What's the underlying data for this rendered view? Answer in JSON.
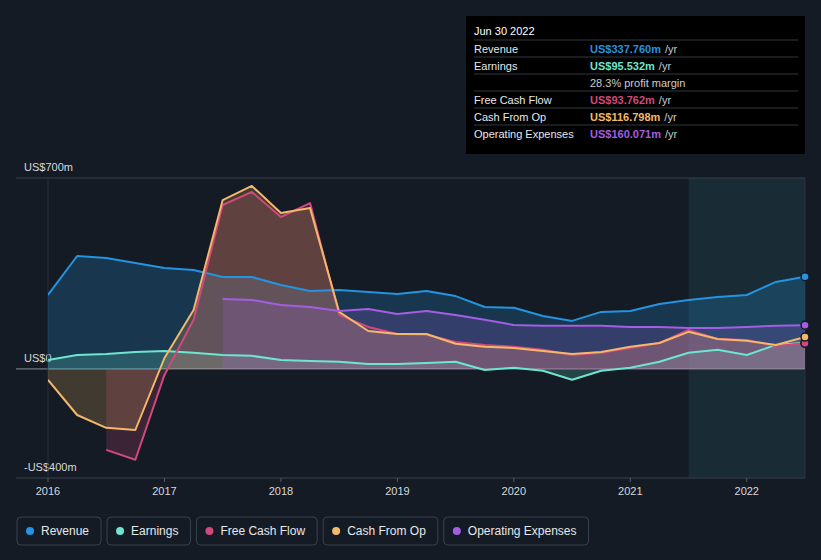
{
  "chart_data": {
    "type": "line",
    "x": [
      2016,
      2016.25,
      2016.5,
      2016.75,
      2017,
      2017.25,
      2017.5,
      2017.75,
      2018,
      2018.25,
      2018.5,
      2018.75,
      2019,
      2019.25,
      2019.5,
      2019.75,
      2020,
      2020.25,
      2020.5,
      2020.75,
      2021,
      2021.25,
      2021.5,
      2021.75,
      2022,
      2022.25,
      2022.5
    ],
    "xlim": [
      2016,
      2022.5
    ],
    "xticks": [
      2016,
      2017,
      2018,
      2019,
      2020,
      2021,
      2022
    ],
    "ylim": [
      -400,
      700
    ],
    "yticks": [
      {
        "value": -400,
        "label": "-US$400m"
      },
      {
        "value": 0,
        "label": "US$0"
      },
      {
        "value": 700,
        "label": "US$700m"
      }
    ],
    "grid": true,
    "legend": "bottom-left",
    "shaded_range": [
      2021.5,
      2022.5
    ],
    "series": [
      {
        "name": "Revenue",
        "color": "#2394df",
        "values": [
          271,
          414,
          407,
          388,
          370,
          363,
          337,
          337,
          308,
          286,
          289,
          282,
          275,
          286,
          267,
          227,
          224,
          194,
          176,
          209,
          212,
          238,
          253,
          264,
          271,
          319,
          338
        ]
      },
      {
        "name": "Earnings",
        "color": "#6ee5cf",
        "values": [
          33,
          51,
          55,
          62,
          66,
          59,
          51,
          48,
          33,
          29,
          26,
          18,
          18,
          22,
          26,
          -4,
          4,
          -7,
          -40,
          -7,
          4,
          26,
          59,
          70,
          51,
          88,
          95.5
        ]
      },
      {
        "name": "Free Cash Flow",
        "color": "#d0497c",
        "values": [
          null,
          null,
          -297,
          -333,
          -22,
          180,
          601,
          649,
          557,
          608,
          198,
          154,
          128,
          125,
          99,
          88,
          81,
          70,
          51,
          59,
          77,
          95,
          143,
          110,
          106,
          84,
          93.8
        ]
      },
      {
        "name": "Cash From Op",
        "color": "#f4b86a",
        "values": [
          -40,
          -169,
          -216,
          -224,
          40,
          216,
          619,
          671,
          572,
          590,
          209,
          139,
          128,
          128,
          92,
          81,
          77,
          66,
          55,
          62,
          81,
          95,
          136,
          110,
          103,
          88,
          116.8
        ]
      },
      {
        "name": "Operating Expenses",
        "color": "#a45de3",
        "values": [
          null,
          null,
          null,
          null,
          null,
          null,
          256,
          253,
          234,
          227,
          212,
          220,
          201,
          212,
          198,
          180,
          161,
          158,
          158,
          158,
          154,
          154,
          150,
          150,
          154,
          158,
          160.1
        ]
      }
    ],
    "tooltip": {
      "title": "Jun 30 2022",
      "rows": [
        {
          "label": "Revenue",
          "value": "US$337.760m",
          "suffix": "/yr",
          "color": "#2394df"
        },
        {
          "label": "Earnings",
          "value": "US$95.532m",
          "suffix": "/yr",
          "color": "#6ee5cf"
        },
        {
          "text": "28.3% profit margin"
        },
        {
          "label": "Free Cash Flow",
          "value": "US$93.762m",
          "suffix": "/yr",
          "color": "#d0497c"
        },
        {
          "label": "Cash From Op",
          "value": "US$116.798m",
          "suffix": "/yr",
          "color": "#f4b86a"
        },
        {
          "label": "Operating Expenses",
          "value": "US$160.071m",
          "suffix": "/yr",
          "color": "#a45de3"
        }
      ]
    }
  }
}
